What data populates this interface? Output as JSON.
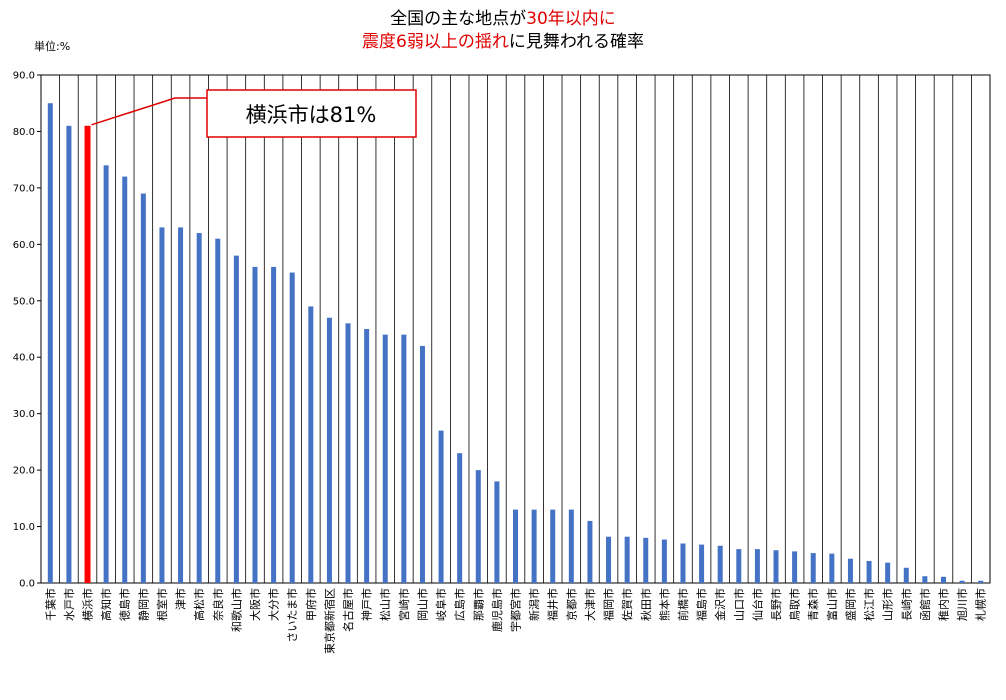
{
  "title": {
    "line1": [
      {
        "text": "全国の主な地点が",
        "color": "#000000"
      },
      {
        "text": "30年以内に",
        "color": "#e00000"
      }
    ],
    "line2": [
      {
        "text": "震度6弱以上の揺れ",
        "color": "#e00000"
      },
      {
        "text": "に見舞われる確率",
        "color": "#000000"
      }
    ]
  },
  "unit_label": "単位:%",
  "callout": {
    "text": "横浜市は81%",
    "border_color": "#e00000"
  },
  "chart_data": {
    "type": "bar",
    "ylim": [
      0,
      90
    ],
    "yticks": [
      "0.0",
      "10.0",
      "20.0",
      "30.0",
      "40.0",
      "50.0",
      "60.0",
      "70.0",
      "80.0",
      "90.0"
    ],
    "grid": "vertical",
    "bar_color": "#4472c4",
    "highlight_color": "#ff0000",
    "highlight_index": 2,
    "categories": [
      "千葉市",
      "水戸市",
      "横浜市",
      "高知市",
      "徳島市",
      "静岡市",
      "根室市",
      "津市",
      "高松市",
      "奈良市",
      "和歌山市",
      "大阪市",
      "大分市",
      "さいたま市",
      "甲府市",
      "東京都新宿区",
      "名古屋市",
      "神戸市",
      "松山市",
      "宮崎市",
      "岡山市",
      "岐阜市",
      "広島市",
      "那覇市",
      "鹿児島市",
      "宇都宮市",
      "新潟市",
      "福井市",
      "京都市",
      "大津市",
      "福岡市",
      "佐賀市",
      "秋田市",
      "熊本市",
      "前橋市",
      "福島市",
      "金沢市",
      "山口市",
      "仙台市",
      "長野市",
      "鳥取市",
      "青森市",
      "富山市",
      "盛岡市",
      "松江市",
      "山形市",
      "長崎市",
      "函館市",
      "稚内市",
      "旭川市",
      "札幌市"
    ],
    "values": [
      85,
      81,
      81,
      74,
      72,
      69,
      63,
      63,
      62,
      61,
      58,
      56,
      56,
      55,
      49,
      47,
      46,
      45,
      44,
      44,
      42,
      27,
      23,
      20,
      18,
      13,
      13,
      13,
      13,
      11,
      8.2,
      8.2,
      8.0,
      7.7,
      7.0,
      6.8,
      6.6,
      6.0,
      6.0,
      5.8,
      5.6,
      5.3,
      5.2,
      4.3,
      3.9,
      3.6,
      2.7,
      1.2,
      1.1,
      0.4,
      0.4
    ]
  }
}
